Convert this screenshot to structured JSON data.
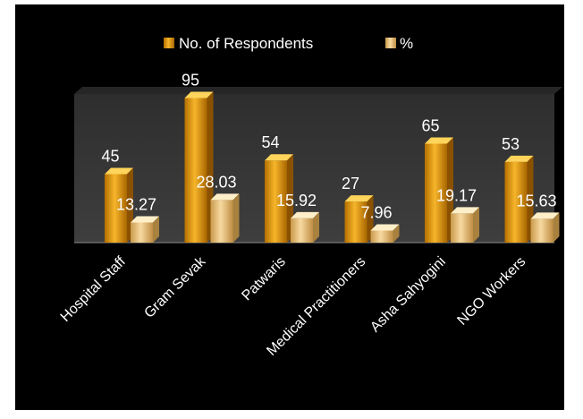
{
  "chart_data": {
    "type": "bar",
    "title": "",
    "xlabel": "",
    "ylabel": "",
    "categories": [
      "Hospital Staff",
      "Gram Sevak",
      "Patwaris",
      "Medical Practitioners",
      "Asha Sahyogini",
      "NGO Workers"
    ],
    "series": [
      {
        "name": "No. of Respondents",
        "values": [
          45,
          95,
          54,
          27,
          65,
          53
        ],
        "value_labels": [
          "45",
          "95",
          "54",
          "27",
          "65",
          "53"
        ],
        "color": "#e8a317"
      },
      {
        "name": "%",
        "values": [
          13.27,
          28.03,
          15.92,
          7.96,
          19.17,
          15.63
        ],
        "value_labels": [
          "13.27",
          "28.03",
          "15.92",
          "7.96",
          "19.17",
          "15.63"
        ],
        "color": "#f2c77e"
      }
    ],
    "ylim": [
      0,
      100
    ],
    "grid": false,
    "legend": "top",
    "colors": {
      "background": "#000000",
      "plot_area": "#333333",
      "text": "#ffffff"
    }
  }
}
